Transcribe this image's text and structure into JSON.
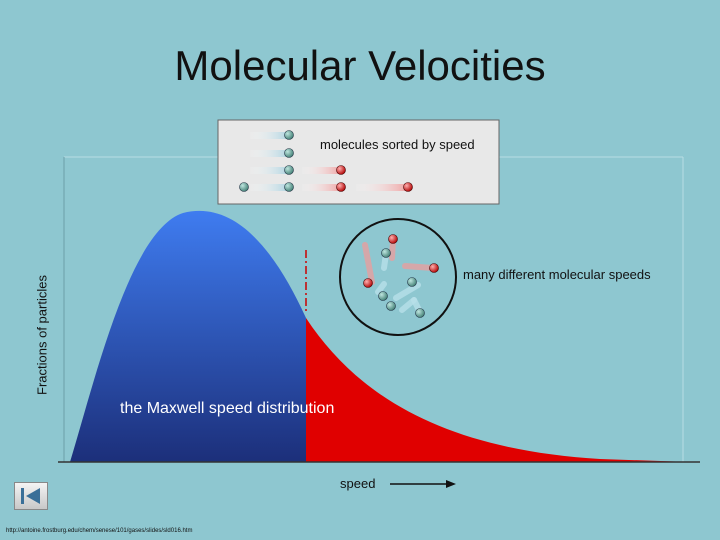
{
  "title": "Molecular Velocities",
  "sorted_label": "molecules sorted by speed",
  "speeds_label": "many different molecular speeds",
  "distribution_label": "the Maxwell speed distribution",
  "y_axis_label": "Fractions of particles",
  "x_axis_label": "speed",
  "source_url": "http://antoine.frostburg.edu/chem/senese/101/gases/slides/sld016.htm",
  "icons": {
    "back": "back-to-start-icon",
    "arrow": "right-arrow-icon"
  },
  "colors": {
    "background": "#8ec7d0",
    "slow_fill_top": "#3f7cf0",
    "slow_fill_bottom": "#1c2f7a",
    "fast_fill": "#e00000",
    "slow_molecule": "#5f9f8f",
    "fast_molecule": "#d81818"
  }
}
